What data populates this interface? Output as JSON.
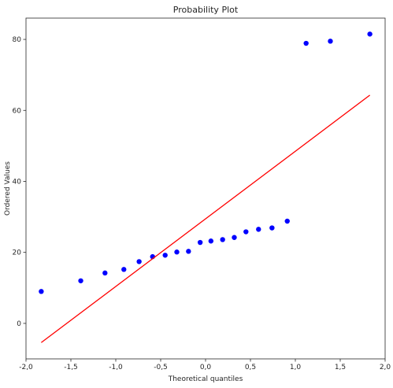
{
  "chart_data": {
    "type": "scatter",
    "title": "Probability Plot",
    "xlabel": "Theoretical quantiles",
    "ylabel": "Ordered Values",
    "xlim": [
      -2.0,
      2.0
    ],
    "ylim": [
      -10,
      86
    ],
    "xticks": [
      -2.0,
      -1.5,
      -1.0,
      -0.5,
      0.0,
      0.5,
      1.0,
      1.5,
      2.0
    ],
    "xtick_labels": [
      "-2,0",
      "-1,5",
      "-1,0",
      "-0,5",
      "0,0",
      "0,5",
      "1,0",
      "1,5",
      "2,0"
    ],
    "yticks": [
      0,
      20,
      40,
      60,
      80
    ],
    "ytick_labels": [
      "0",
      "20",
      "40",
      "60",
      "80"
    ],
    "grid": false,
    "series": [
      {
        "kind": "points",
        "color": "#0000ff",
        "x": [
          -1.83,
          -1.39,
          -1.12,
          -0.91,
          -0.74,
          -0.59,
          -0.45,
          -0.32,
          -0.19,
          -0.06,
          0.06,
          0.19,
          0.32,
          0.45,
          0.59,
          0.74,
          0.91,
          1.12,
          1.39,
          1.83
        ],
        "y": [
          9.0,
          12.0,
          14.2,
          15.2,
          17.4,
          18.8,
          19.2,
          20.1,
          20.3,
          22.8,
          23.2,
          23.6,
          24.2,
          25.8,
          26.5,
          26.9,
          28.8,
          78.9,
          79.5,
          81.5
        ]
      },
      {
        "kind": "line",
        "color": "#ff0000",
        "x": [
          -1.83,
          1.83
        ],
        "y": [
          -5.4,
          64.3
        ]
      }
    ]
  }
}
